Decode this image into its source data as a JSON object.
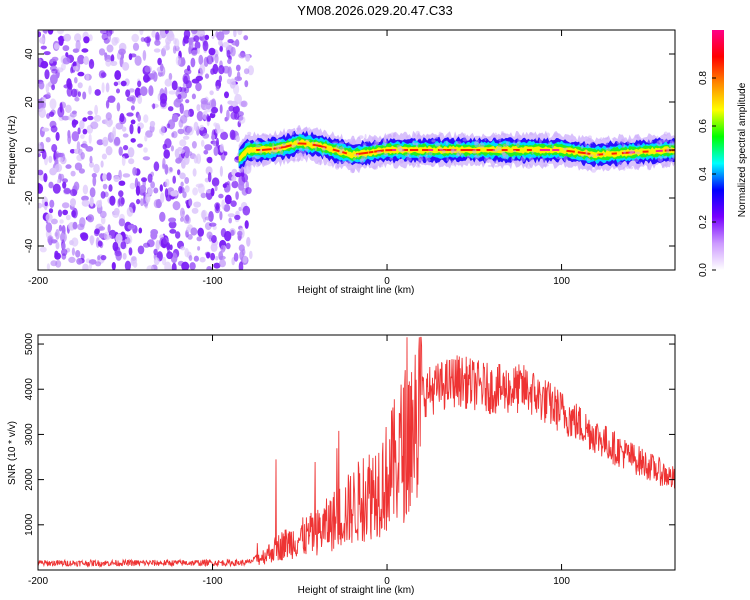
{
  "title": "YM08.2026.029.20.47.C33",
  "chart_data": [
    {
      "type": "heatmap",
      "xlabel": "Height of straight line (km)",
      "ylabel": "Frequency (Hz)",
      "xlim": [
        -200,
        165
      ],
      "ylim": [
        -50,
        50
      ],
      "x_ticks": [
        -200,
        -100,
        0,
        100
      ],
      "y_ticks": [
        -40,
        -20,
        0,
        20,
        40
      ],
      "colorbar": {
        "label": "Normalized spectral amplitude",
        "range": [
          0,
          1
        ],
        "ticks": [
          "0.0",
          "0.2",
          "0.4",
          "0.6",
          "0.8"
        ],
        "colors": [
          "#ffffff",
          "#cc99ff",
          "#7700ff",
          "#0000ff",
          "#00ffff",
          "#00ff00",
          "#ffff00",
          "#ff8800",
          "#ff0000",
          "#ff0088"
        ]
      },
      "noise_region": {
        "x_from": -200,
        "x_to": -78,
        "amplitude": 0.2
      },
      "signal_track": [
        {
          "x": -85,
          "f": -4
        },
        {
          "x": -80,
          "f": 0
        },
        {
          "x": -70,
          "f": 0
        },
        {
          "x": -60,
          "f": 1
        },
        {
          "x": -50,
          "f": 3
        },
        {
          "x": -40,
          "f": 2
        },
        {
          "x": -30,
          "f": 0
        },
        {
          "x": -20,
          "f": -2
        },
        {
          "x": -10,
          "f": -1
        },
        {
          "x": 0,
          "f": 0
        },
        {
          "x": 20,
          "f": 0
        },
        {
          "x": 50,
          "f": 0
        },
        {
          "x": 100,
          "f": 0
        },
        {
          "x": 120,
          "f": -2
        },
        {
          "x": 140,
          "f": -1
        },
        {
          "x": 165,
          "f": 0
        }
      ]
    },
    {
      "type": "line",
      "xlabel": "Height of straight line (km)",
      "ylabel": "SNR (10 * v/v)",
      "xlim": [
        -200,
        165
      ],
      "ylim": [
        0,
        5200
      ],
      "x_ticks": [
        -200,
        -100,
        0,
        100
      ],
      "y_ticks": [
        1000,
        2000,
        3000,
        4000,
        5000
      ],
      "color": "#ee3333",
      "envelope": [
        {
          "x": -200,
          "y": 150
        },
        {
          "x": -80,
          "y": 160
        },
        {
          "x": -72,
          "y": 300
        },
        {
          "x": -60,
          "y": 600
        },
        {
          "x": -40,
          "y": 900
        },
        {
          "x": -20,
          "y": 1500
        },
        {
          "x": 0,
          "y": 2200
        },
        {
          "x": 10,
          "y": 3000
        },
        {
          "x": 20,
          "y": 3900
        },
        {
          "x": 40,
          "y": 4200
        },
        {
          "x": 60,
          "y": 4000
        },
        {
          "x": 80,
          "y": 4000
        },
        {
          "x": 100,
          "y": 3500
        },
        {
          "x": 130,
          "y": 2700
        },
        {
          "x": 165,
          "y": 2000
        }
      ]
    }
  ]
}
